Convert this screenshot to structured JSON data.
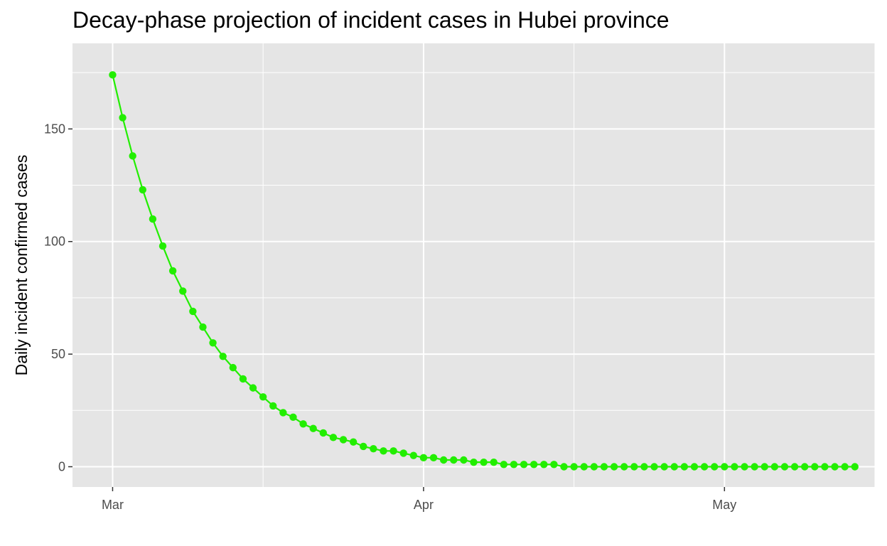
{
  "chart_data": {
    "type": "line",
    "title": "Decay-phase projection of incident cases in Hubei province",
    "xlabel": "",
    "ylabel": "Daily incident confirmed cases",
    "x_axis": {
      "type": "date",
      "start": "2020-03-01",
      "range": [
        "2020-02-26",
        "2020-05-16"
      ],
      "ticks": [
        {
          "date": "2020-03-01",
          "label": "Mar"
        },
        {
          "date": "2020-04-01",
          "label": "Apr"
        },
        {
          "date": "2020-05-01",
          "label": "May"
        }
      ],
      "minor_gridlines": [
        "2020-03-16",
        "2020-04-16",
        "2020-05-16"
      ]
    },
    "y_axis": {
      "range": [
        -9,
        188
      ],
      "ticks": [
        0,
        50,
        100,
        150
      ]
    },
    "grid": true,
    "legend": "none",
    "colors": {
      "series": "#22ee00",
      "panel_background": "#e5e5e5",
      "gridline": "#ffffff",
      "tick_text": "#4d4d4d"
    },
    "series": [
      {
        "x": [
          "2020-03-01",
          "2020-03-02",
          "2020-03-03",
          "2020-03-04",
          "2020-03-05",
          "2020-03-06",
          "2020-03-07",
          "2020-03-08",
          "2020-03-09",
          "2020-03-10",
          "2020-03-11",
          "2020-03-12",
          "2020-03-13",
          "2020-03-14",
          "2020-03-15",
          "2020-03-16",
          "2020-03-17",
          "2020-03-18",
          "2020-03-19",
          "2020-03-20",
          "2020-03-21",
          "2020-03-22",
          "2020-03-23",
          "2020-03-24",
          "2020-03-25",
          "2020-03-26",
          "2020-03-27",
          "2020-03-28",
          "2020-03-29",
          "2020-03-30",
          "2020-03-31",
          "2020-04-01",
          "2020-04-02",
          "2020-04-03",
          "2020-04-04",
          "2020-04-05",
          "2020-04-06",
          "2020-04-07",
          "2020-04-08",
          "2020-04-09",
          "2020-04-10",
          "2020-04-11",
          "2020-04-12",
          "2020-04-13",
          "2020-04-14",
          "2020-04-15",
          "2020-04-16",
          "2020-04-17",
          "2020-04-18",
          "2020-04-19",
          "2020-04-20",
          "2020-04-21",
          "2020-04-22",
          "2020-04-23",
          "2020-04-24",
          "2020-04-25",
          "2020-04-26",
          "2020-04-27",
          "2020-04-28",
          "2020-04-29",
          "2020-04-30",
          "2020-05-01",
          "2020-05-02",
          "2020-05-03",
          "2020-05-04",
          "2020-05-05",
          "2020-05-06",
          "2020-05-07",
          "2020-05-08",
          "2020-05-09",
          "2020-05-10",
          "2020-05-11",
          "2020-05-12",
          "2020-05-13",
          "2020-05-14"
        ],
        "values": [
          174,
          155,
          138,
          123,
          110,
          98,
          87,
          78,
          69,
          62,
          55,
          49,
          44,
          39,
          35,
          31,
          27,
          24,
          22,
          19,
          17,
          15,
          13,
          12,
          11,
          9,
          8,
          7,
          7,
          6,
          5,
          4,
          4,
          3,
          3,
          3,
          2,
          2,
          2,
          1,
          1,
          1,
          1,
          1,
          1,
          0,
          0,
          0,
          0,
          0,
          0,
          0,
          0,
          0,
          0,
          0,
          0,
          0,
          0,
          0,
          0,
          0,
          0,
          0,
          0,
          0,
          0,
          0,
          0,
          0,
          0,
          0,
          0,
          0,
          0
        ]
      }
    ]
  }
}
